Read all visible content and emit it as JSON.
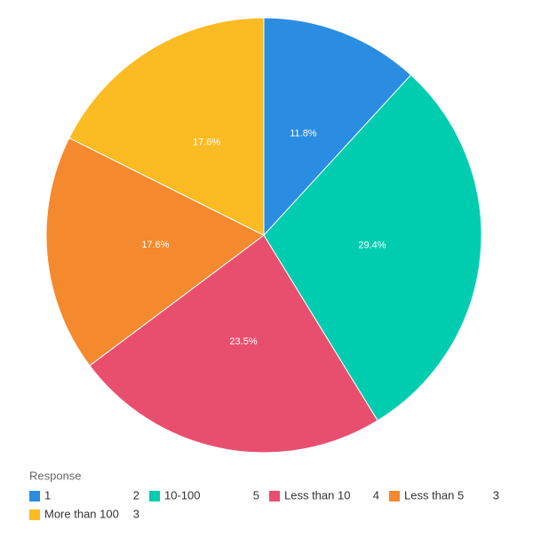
{
  "chart_data": {
    "type": "pie",
    "categories": [
      "1",
      "10-100",
      "Less than 10",
      "Less than 5",
      "More than 100"
    ],
    "values": [
      11.8,
      29.4,
      23.5,
      17.6,
      17.6
    ],
    "value_labels": [
      "11.8%",
      "29.4%",
      "23.5%",
      "17.6%",
      "17.6%"
    ],
    "counts": [
      2,
      5,
      4,
      3,
      3
    ],
    "colors": [
      "#2a8de2",
      "#00cdb0",
      "#e84f6f",
      "#f5892e",
      "#fbbb22"
    ],
    "legend_title": "Response",
    "legend": "bottom"
  }
}
